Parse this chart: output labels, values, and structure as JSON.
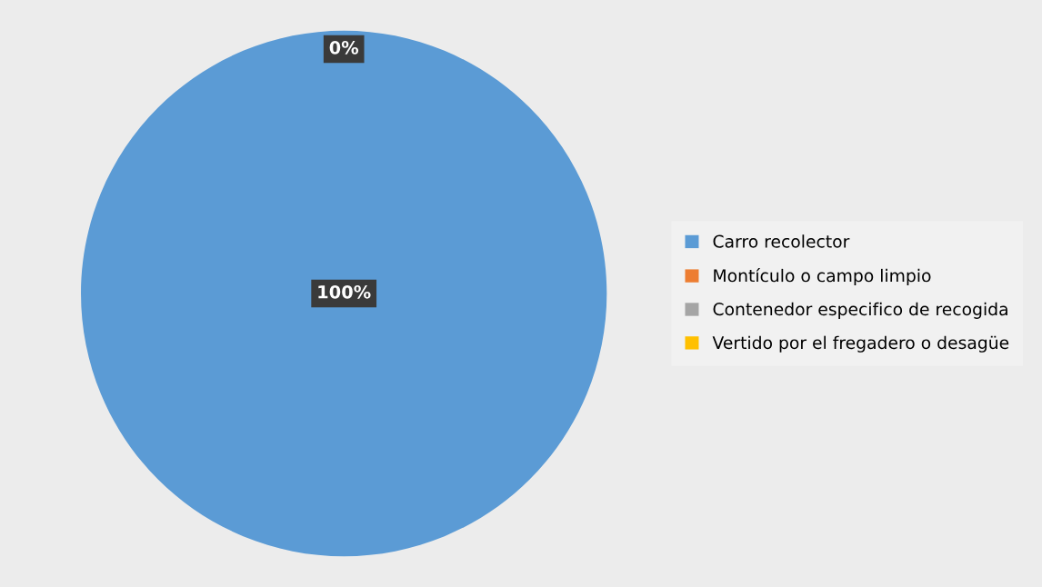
{
  "chart_data": {
    "type": "pie",
    "categories": [
      "Carro recolector",
      "Montículo o campo limpio",
      "Contenedor especifico de recogida",
      "Vertido por el fregadero o desagüe"
    ],
    "values": [
      100,
      0,
      0,
      0
    ],
    "colors": [
      "#5b9bd5",
      "#ed7d31",
      "#a5a5a5",
      "#ffc000"
    ],
    "value_labels": [
      "100%",
      "0%",
      null,
      null
    ],
    "legend": "right"
  }
}
